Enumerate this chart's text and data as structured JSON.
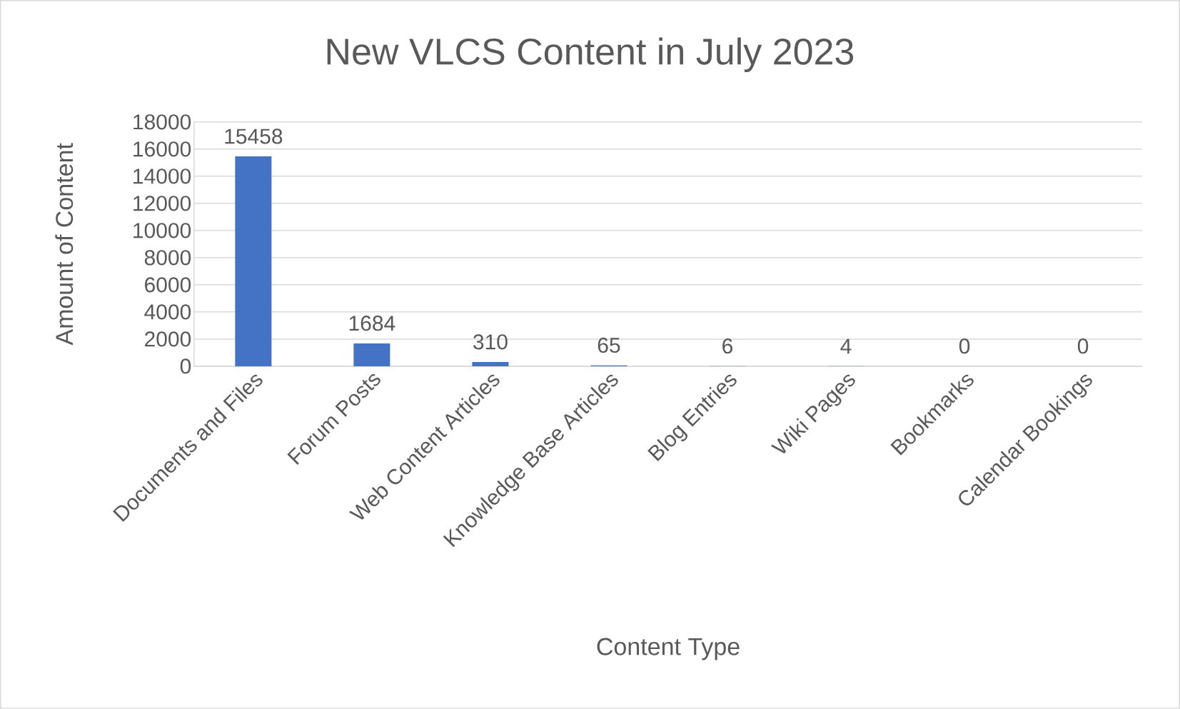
{
  "chart_data": {
    "type": "bar",
    "title": "New VLCS Content in July 2023",
    "xlabel": "Content Type",
    "ylabel": "Amount of Content",
    "categories": [
      "Documents and Files",
      "Forum Posts",
      "Web Content Articles",
      "Knowledge Base Articles",
      "Blog Entries",
      "Wiki Pages",
      "Bookmarks",
      "Calendar Bookings"
    ],
    "values": [
      15458,
      1684,
      310,
      65,
      6,
      4,
      0,
      0
    ],
    "color": "#4472c4",
    "ylim": [
      0,
      18000
    ],
    "yticks": [
      0,
      2000,
      4000,
      6000,
      8000,
      10000,
      12000,
      14000,
      16000,
      18000
    ],
    "grid": "y",
    "data_labels": true
  }
}
